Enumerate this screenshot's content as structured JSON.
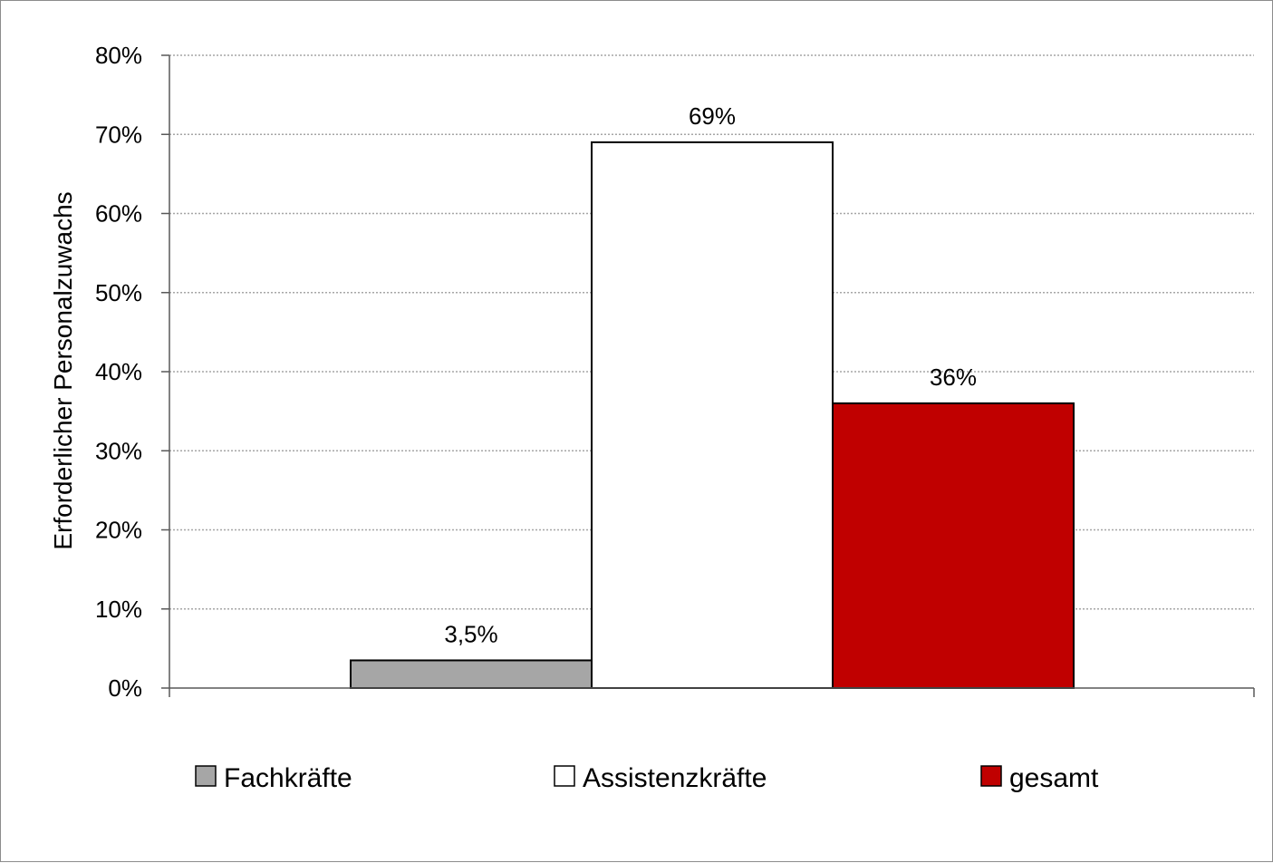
{
  "chart_data": {
    "type": "bar",
    "ylabel": "Erforderlicher Personalzuwachs",
    "ylim": [
      0,
      0.8
    ],
    "y_ticks": [
      {
        "value": 0.0,
        "label": "0%"
      },
      {
        "value": 0.1,
        "label": "10%"
      },
      {
        "value": 0.2,
        "label": "20%"
      },
      {
        "value": 0.3,
        "label": "30%"
      },
      {
        "value": 0.4,
        "label": "40%"
      },
      {
        "value": 0.5,
        "label": "50%"
      },
      {
        "value": 0.6,
        "label": "60%"
      },
      {
        "value": 0.7,
        "label": "70%"
      },
      {
        "value": 0.8,
        "label": "80%"
      }
    ],
    "grid": true,
    "legend_position": "bottom",
    "series": [
      {
        "name": "Fachkräfte",
        "value": 0.035,
        "data_label": "3,5%",
        "color": "#a6a6a6"
      },
      {
        "name": "Assistenzkräfte",
        "value": 0.69,
        "data_label": "69%",
        "color": "#ffffff"
      },
      {
        "name": "gesamt",
        "value": 0.36,
        "data_label": "36%",
        "color": "#c00000"
      }
    ]
  }
}
